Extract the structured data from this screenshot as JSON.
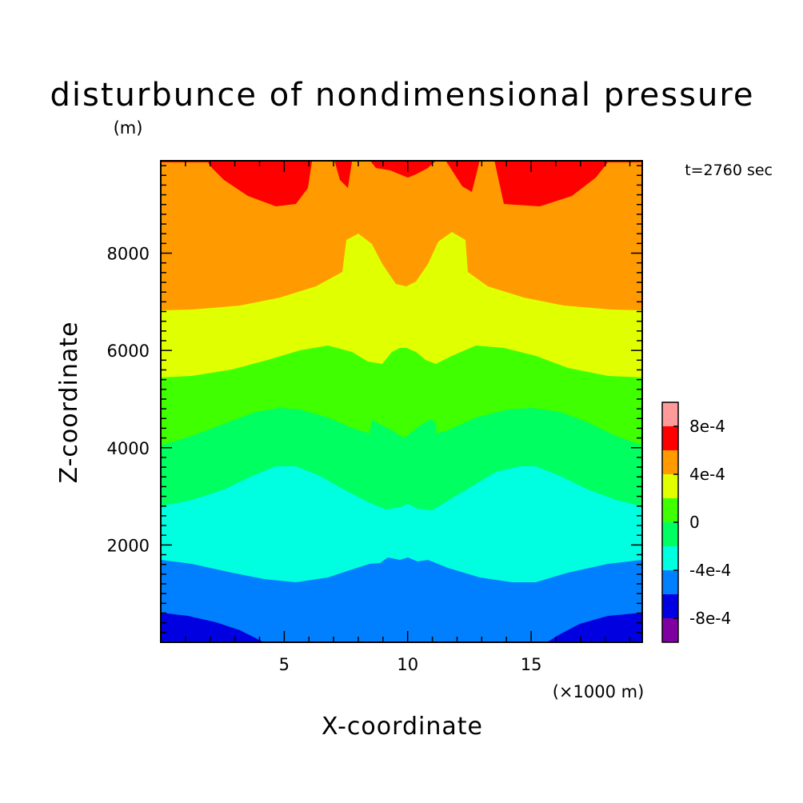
{
  "chart_data": {
    "type": "contour",
    "title": "disturbunce of nondimensional pressure",
    "y_unit_label": "(m)",
    "time_label": "t=2760 sec",
    "xlabel": "X-coordinate",
    "ylabel": "Z-coordinate",
    "x_unit_label": "(×1000 m)",
    "xlim": [
      0,
      19.5
    ],
    "ylim": [
      0,
      9900
    ],
    "x_ticks": [
      "5",
      "10",
      "15"
    ],
    "y_ticks": [
      "2000",
      "4000",
      "6000",
      "8000"
    ],
    "colorbar": {
      "levels": [
        -0.001,
        -0.0008,
        -0.0006,
        -0.0004,
        -0.0002,
        0,
        0.0002,
        0.0004,
        0.0006,
        0.0008,
        0.001
      ],
      "colors": [
        "#7f00a0",
        "#0000e0",
        "#0080ff",
        "#00ffe0",
        "#00ff60",
        "#40ff00",
        "#e0ff00",
        "#ff9a00",
        "#ff0000",
        "#ff9a9a"
      ],
      "tick_labels": [
        "-8e-4",
        "-4e-4",
        "0",
        "4e-4",
        "8e-4"
      ]
    },
    "bands": [
      {
        "name": "-8e-4 to -6e-4",
        "color": "#0000e0",
        "region": "bottom corners"
      },
      {
        "name": "-6e-4 to -4e-4",
        "color": "#0080ff",
        "region": "z 0-1800 m"
      },
      {
        "name": "-4e-4 to -2e-4",
        "color": "#00ffe0",
        "region": "z 1700-3700 m"
      },
      {
        "name": "-2e-4 to 0",
        "color": "#00ff60",
        "region": "z 2800-4900 m"
      },
      {
        "name": "0 to 2e-4",
        "color": "#40ff00",
        "region": "z 4100-6100 m"
      },
      {
        "name": "2e-4 to 4e-4",
        "color": "#e0ff00",
        "region": "z 5500-8400 m"
      },
      {
        "name": "4e-4 to 6e-4",
        "color": "#ff9a00",
        "region": "z 6800-9900 m"
      },
      {
        "name": "6e-4 to 8e-4",
        "color": "#ff0000",
        "region": "top, z above 9000 m"
      }
    ]
  }
}
